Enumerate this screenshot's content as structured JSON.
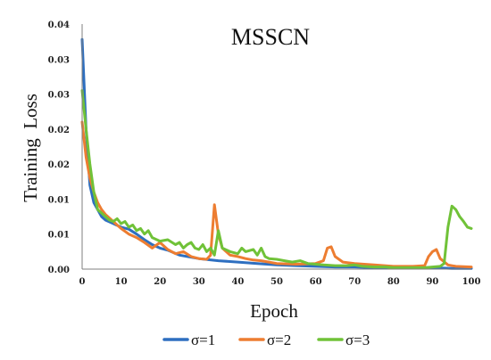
{
  "chart_data": {
    "type": "line",
    "title": "MSSCN",
    "xlabel": "Epoch",
    "ylabel": "Training  Loss",
    "xlim": [
      0,
      100
    ],
    "ylim": [
      0,
      0.035
    ],
    "x_ticks": [
      0,
      10,
      20,
      30,
      40,
      50,
      60,
      70,
      80,
      90,
      100
    ],
    "x_tick_labels": [
      "0",
      "10",
      "20",
      "30",
      "40",
      "50",
      "60",
      "70",
      "80",
      "90",
      "100"
    ],
    "y_ticks": [
      0,
      0.005,
      0.01,
      0.015,
      0.02,
      0.025,
      0.03,
      0.035
    ],
    "y_tick_labels": [
      "0.00",
      "0.01",
      "0.01",
      "0.02",
      "0.02",
      "0.03",
      "0.03",
      "0.04"
    ],
    "grid": false,
    "legend_position": "bottom",
    "series": [
      {
        "name": "σ=1",
        "color": "#2e6fc0",
        "points": [
          [
            0,
            0.0328
          ],
          [
            1,
            0.02
          ],
          [
            2,
            0.012
          ],
          [
            3,
            0.0095
          ],
          [
            4,
            0.0085
          ],
          [
            5,
            0.0075
          ],
          [
            6,
            0.007
          ],
          [
            8,
            0.0065
          ],
          [
            10,
            0.006
          ],
          [
            12,
            0.0057
          ],
          [
            14,
            0.005
          ],
          [
            16,
            0.0042
          ],
          [
            18,
            0.0035
          ],
          [
            20,
            0.003
          ],
          [
            22,
            0.0027
          ],
          [
            25,
            0.002
          ],
          [
            28,
            0.0017
          ],
          [
            30,
            0.0015
          ],
          [
            35,
            0.0012
          ],
          [
            40,
            0.001
          ],
          [
            45,
            0.0008
          ],
          [
            50,
            0.0006
          ],
          [
            55,
            0.0005
          ],
          [
            60,
            0.0004
          ],
          [
            65,
            0.0003
          ],
          [
            70,
            0.0003
          ],
          [
            75,
            0.0002
          ],
          [
            80,
            0.0002
          ],
          [
            85,
            0.0002
          ],
          [
            90,
            0.0002
          ],
          [
            95,
            0.0001
          ],
          [
            100,
            0.0001
          ]
        ]
      },
      {
        "name": "σ=2",
        "color": "#ed7d31",
        "points": [
          [
            0,
            0.021
          ],
          [
            1,
            0.016
          ],
          [
            2,
            0.013
          ],
          [
            3,
            0.011
          ],
          [
            4,
            0.0095
          ],
          [
            5,
            0.0085
          ],
          [
            6,
            0.0078
          ],
          [
            8,
            0.0068
          ],
          [
            10,
            0.0058
          ],
          [
            12,
            0.005
          ],
          [
            14,
            0.0045
          ],
          [
            16,
            0.0038
          ],
          [
            18,
            0.003
          ],
          [
            20,
            0.0038
          ],
          [
            22,
            0.0028
          ],
          [
            24,
            0.0022
          ],
          [
            26,
            0.0025
          ],
          [
            28,
            0.0018
          ],
          [
            30,
            0.0015
          ],
          [
            32,
            0.0014
          ],
          [
            33,
            0.002
          ],
          [
            34,
            0.0092
          ],
          [
            35,
            0.005
          ],
          [
            36,
            0.003
          ],
          [
            38,
            0.002
          ],
          [
            40,
            0.0018
          ],
          [
            42,
            0.0015
          ],
          [
            44,
            0.0013
          ],
          [
            46,
            0.0012
          ],
          [
            48,
            0.001
          ],
          [
            50,
            0.0008
          ],
          [
            55,
            0.0007
          ],
          [
            60,
            0.0008
          ],
          [
            62,
            0.0012
          ],
          [
            63,
            0.003
          ],
          [
            64,
            0.0032
          ],
          [
            65,
            0.0018
          ],
          [
            67,
            0.001
          ],
          [
            70,
            0.0008
          ],
          [
            75,
            0.0006
          ],
          [
            80,
            0.0004
          ],
          [
            85,
            0.0004
          ],
          [
            88,
            0.0005
          ],
          [
            89,
            0.0018
          ],
          [
            90,
            0.0025
          ],
          [
            91,
            0.0028
          ],
          [
            92,
            0.0015
          ],
          [
            94,
            0.0006
          ],
          [
            96,
            0.0004
          ],
          [
            100,
            0.0003
          ]
        ]
      },
      {
        "name": "σ=3",
        "color": "#70c238",
        "points": [
          [
            0,
            0.0255
          ],
          [
            1,
            0.02
          ],
          [
            2,
            0.015
          ],
          [
            3,
            0.011
          ],
          [
            4,
            0.0085
          ],
          [
            5,
            0.008
          ],
          [
            6,
            0.0075
          ],
          [
            7,
            0.007
          ],
          [
            8,
            0.0068
          ],
          [
            9,
            0.0072
          ],
          [
            10,
            0.0065
          ],
          [
            11,
            0.0068
          ],
          [
            12,
            0.006
          ],
          [
            13,
            0.0063
          ],
          [
            14,
            0.0055
          ],
          [
            15,
            0.0058
          ],
          [
            16,
            0.005
          ],
          [
            17,
            0.0055
          ],
          [
            18,
            0.0045
          ],
          [
            20,
            0.004
          ],
          [
            22,
            0.0042
          ],
          [
            24,
            0.0035
          ],
          [
            25,
            0.0038
          ],
          [
            26,
            0.003
          ],
          [
            27,
            0.0035
          ],
          [
            28,
            0.0038
          ],
          [
            29,
            0.003
          ],
          [
            30,
            0.0028
          ],
          [
            31,
            0.0035
          ],
          [
            32,
            0.0025
          ],
          [
            33,
            0.003
          ],
          [
            34,
            0.002
          ],
          [
            35,
            0.0055
          ],
          [
            36,
            0.003
          ],
          [
            38,
            0.0025
          ],
          [
            40,
            0.0022
          ],
          [
            41,
            0.003
          ],
          [
            42,
            0.0025
          ],
          [
            44,
            0.0028
          ],
          [
            45,
            0.002
          ],
          [
            46,
            0.003
          ],
          [
            47,
            0.0018
          ],
          [
            48,
            0.0015
          ],
          [
            50,
            0.0014
          ],
          [
            52,
            0.0012
          ],
          [
            54,
            0.001
          ],
          [
            56,
            0.0012
          ],
          [
            58,
            0.0008
          ],
          [
            60,
            0.0007
          ],
          [
            62,
            0.0006
          ],
          [
            65,
            0.0005
          ],
          [
            68,
            0.0005
          ],
          [
            70,
            0.0006
          ],
          [
            72,
            0.0004
          ],
          [
            75,
            0.0003
          ],
          [
            78,
            0.0003
          ],
          [
            80,
            0.0002
          ],
          [
            82,
            0.0002
          ],
          [
            85,
            0.0002
          ],
          [
            88,
            0.0002
          ],
          [
            90,
            0.0003
          ],
          [
            92,
            0.0004
          ],
          [
            93,
            0.0008
          ],
          [
            94,
            0.006
          ],
          [
            95,
            0.009
          ],
          [
            96,
            0.0085
          ],
          [
            97,
            0.0075
          ],
          [
            98,
            0.0068
          ],
          [
            99,
            0.006
          ],
          [
            100,
            0.0058
          ]
        ]
      }
    ]
  }
}
